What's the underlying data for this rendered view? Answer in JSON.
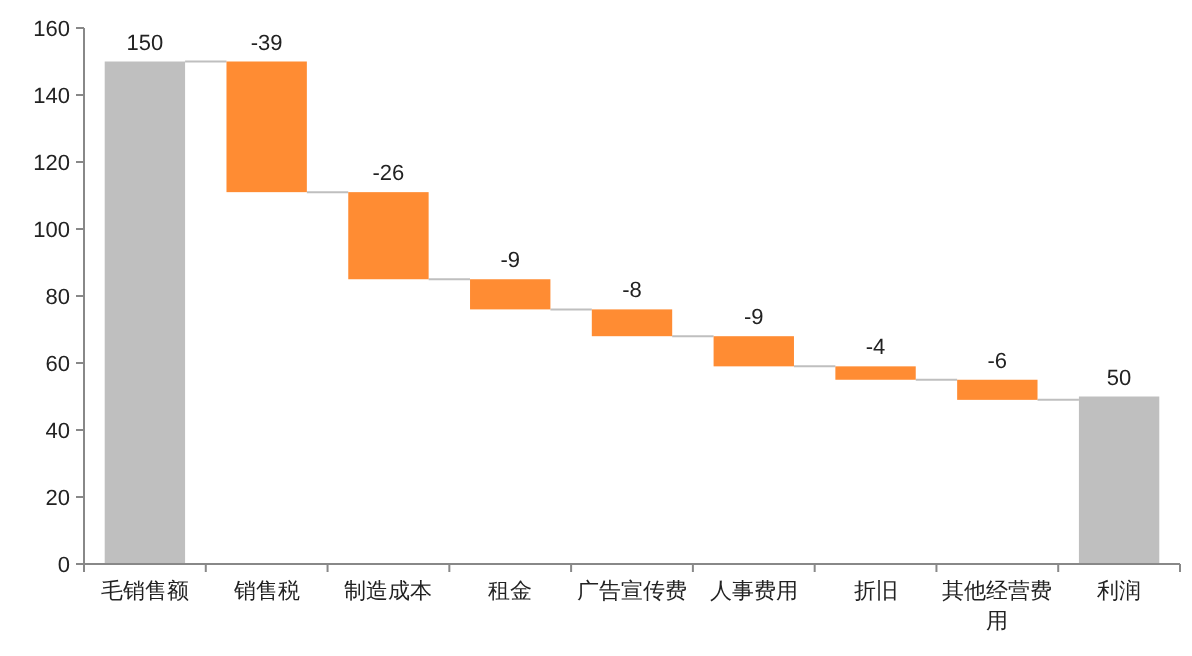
{
  "chart_data": {
    "type": "bar",
    "categories": [
      "毛销售额",
      "销售税",
      "制造成本",
      "租金",
      "广告宣传费",
      "人事费用",
      "折旧",
      "其他经营费用",
      "利润"
    ],
    "values": [
      150,
      -39,
      -26,
      -9,
      -8,
      -9,
      -4,
      -6,
      50
    ],
    "base": [
      0,
      150,
      111,
      85,
      76,
      68,
      59,
      55,
      0
    ],
    "colors": [
      "#bfbfbf",
      "#ff8c33",
      "#ff8c33",
      "#ff8c33",
      "#ff8c33",
      "#ff8c33",
      "#ff8c33",
      "#ff8c33",
      "#bfbfbf"
    ],
    "ylim": [
      0,
      160
    ],
    "yticks": [
      0,
      20,
      40,
      60,
      80,
      100,
      120,
      140,
      160
    ],
    "data_labels": true
  }
}
